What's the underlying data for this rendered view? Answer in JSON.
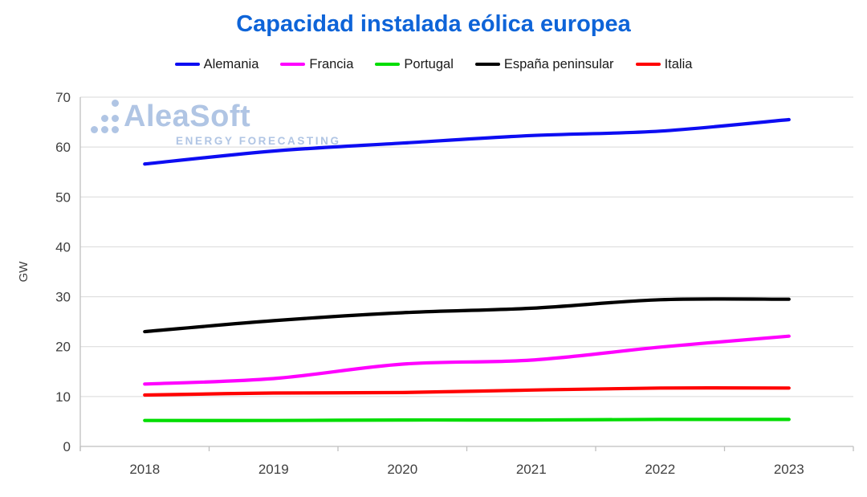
{
  "title": "Capacidad instalada eólica europea",
  "watermark": {
    "brand": "AleaSoft",
    "tagline": "ENERGY FORECASTING"
  },
  "colors": {
    "title": "#0e64d8",
    "watermark": "#b0c5e4",
    "gridline": "#d9d9d9",
    "axis_line": "#bfbfbf",
    "tick_text": "#404040",
    "legend_text": "#1a1a1a",
    "background": "#ffffff"
  },
  "chart_data": {
    "type": "line",
    "title": "Capacidad instalada eólica europea",
    "xlabel": "",
    "ylabel": "GW",
    "ylim": [
      0,
      70
    ],
    "y_ticks": [
      0,
      10,
      20,
      30,
      40,
      50,
      60,
      70
    ],
    "grid": true,
    "legend_position": "top",
    "smoothed_lines": true,
    "categories": [
      "2018",
      "2019",
      "2020",
      "2021",
      "2022",
      "2023"
    ],
    "series": [
      {
        "name": "Alemania",
        "color": "#0d0df2",
        "values": [
          56.6,
          59.2,
          60.8,
          62.3,
          63.2,
          65.5
        ]
      },
      {
        "name": "Francia",
        "color": "#ff00ff",
        "values": [
          12.5,
          13.6,
          16.5,
          17.3,
          19.9,
          22.1
        ]
      },
      {
        "name": "Portugal",
        "color": "#00dd00",
        "values": [
          5.2,
          5.2,
          5.3,
          5.3,
          5.4,
          5.4
        ]
      },
      {
        "name": "España peninsular",
        "color": "#000000",
        "values": [
          23.0,
          25.2,
          26.8,
          27.7,
          29.4,
          29.5
        ]
      },
      {
        "name": "Italia",
        "color": "#ff0000",
        "values": [
          10.3,
          10.7,
          10.8,
          11.3,
          11.7,
          11.7
        ]
      }
    ]
  }
}
